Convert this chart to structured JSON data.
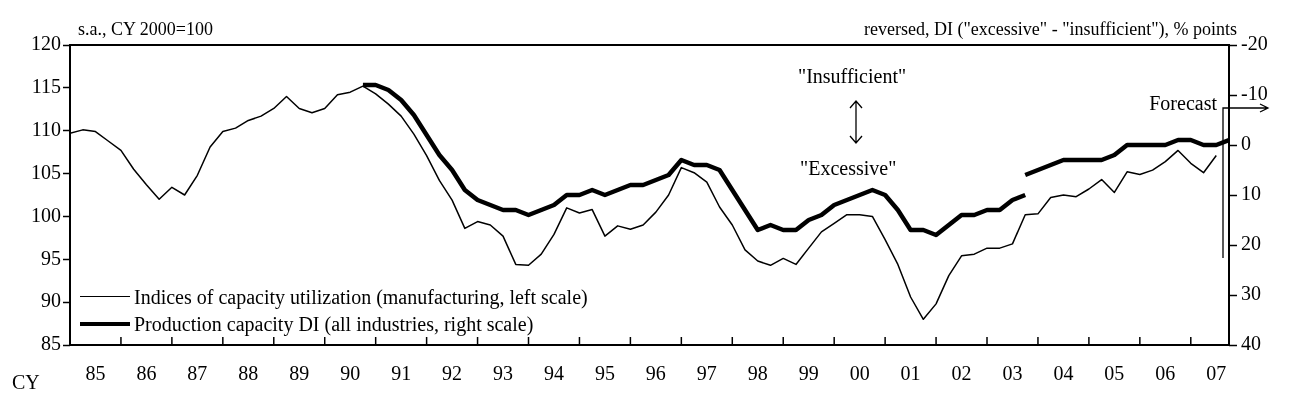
{
  "chart_data": {
    "type": "line",
    "ylabel": "s.a., CY 2000=100",
    "y2label": "reversed, DI (\"excessive\" - \"insufficient\"), % points",
    "xlabel": "CY",
    "annotations": [
      "\"Insufficient\"",
      "\"Excessive\"",
      "Forecast"
    ],
    "legend": "bottom left",
    "xlim": [
      "1985-01",
      "2007-10"
    ],
    "xticks": [
      {
        "value": "1985-01",
        "label": null
      },
      {
        "value": "1985-07",
        "label": "85"
      },
      {
        "value": "1986-01",
        "label": null
      },
      {
        "value": "1986-07",
        "label": "86"
      },
      {
        "value": "1987-01",
        "label": null
      },
      {
        "value": "1987-07",
        "label": "87"
      },
      {
        "value": "1988-01",
        "label": null
      },
      {
        "value": "1988-07",
        "label": "88"
      },
      {
        "value": "1989-01",
        "label": null
      },
      {
        "value": "1989-07",
        "label": "89"
      },
      {
        "value": "1990-01",
        "label": null
      },
      {
        "value": "1990-07",
        "label": "90"
      },
      {
        "value": "1991-01",
        "label": null
      },
      {
        "value": "1991-07",
        "label": "91"
      },
      {
        "value": "1992-01",
        "label": null
      },
      {
        "value": "1992-07",
        "label": "92"
      },
      {
        "value": "1993-01",
        "label": null
      },
      {
        "value": "1993-07",
        "label": "93"
      },
      {
        "value": "1994-01",
        "label": null
      },
      {
        "value": "1994-07",
        "label": "94"
      },
      {
        "value": "1995-01",
        "label": null
      },
      {
        "value": "1995-07",
        "label": "95"
      },
      {
        "value": "1996-01",
        "label": null
      },
      {
        "value": "1996-07",
        "label": "96"
      },
      {
        "value": "1997-01",
        "label": null
      },
      {
        "value": "1997-07",
        "label": "97"
      },
      {
        "value": "1998-01",
        "label": null
      },
      {
        "value": "1998-07",
        "label": "98"
      },
      {
        "value": "1999-01",
        "label": null
      },
      {
        "value": "1999-07",
        "label": "99"
      },
      {
        "value": "2000-01",
        "label": null
      },
      {
        "value": "2000-07",
        "label": "00"
      },
      {
        "value": "2001-01",
        "label": null
      },
      {
        "value": "2001-07",
        "label": "01"
      },
      {
        "value": "2002-01",
        "label": null
      },
      {
        "value": "2002-07",
        "label": "02"
      },
      {
        "value": "2003-01",
        "label": null
      },
      {
        "value": "2003-07",
        "label": "03"
      },
      {
        "value": "2004-01",
        "label": null
      },
      {
        "value": "2004-07",
        "label": "04"
      },
      {
        "value": "2005-01",
        "label": null
      },
      {
        "value": "2005-07",
        "label": "05"
      },
      {
        "value": "2006-01",
        "label": null
      },
      {
        "value": "2006-07",
        "label": "06"
      },
      {
        "value": "2007-01",
        "label": null
      },
      {
        "value": "2007-07",
        "label": "07"
      }
    ],
    "ylim": [
      85,
      120
    ],
    "yticks": [
      85,
      90,
      95,
      100,
      105,
      110,
      115,
      120
    ],
    "y2lim": [
      40,
      -20
    ],
    "y2ticks": [
      40,
      30,
      20,
      10,
      0,
      -10,
      -20
    ],
    "series": [
      {
        "name": "Indices of capacity utilization (manufacturing, left scale)",
        "color": "#000000",
        "x": [
          "1985-01",
          "1985-04",
          "1985-07",
          "1985-10",
          "1986-01",
          "1986-04",
          "1986-07",
          "1986-10",
          "1987-01",
          "1987-04",
          "1987-07",
          "1987-10",
          "1988-01",
          "1988-04",
          "1988-07",
          "1988-10",
          "1989-01",
          "1989-04",
          "1989-07",
          "1989-10",
          "1990-01",
          "1990-04",
          "1990-07",
          "1990-10",
          "1991-01",
          "1991-04",
          "1991-07",
          "1991-10",
          "1992-01",
          "1992-04",
          "1992-07",
          "1992-10",
          "1993-01",
          "1993-04",
          "1993-07",
          "1993-10",
          "1994-01",
          "1994-04",
          "1994-07",
          "1994-10",
          "1995-01",
          "1995-04",
          "1995-07",
          "1995-10",
          "1996-01",
          "1996-04",
          "1996-07",
          "1996-10",
          "1997-01",
          "1997-04",
          "1997-07",
          "1997-10",
          "1998-01",
          "1998-04",
          "1998-07",
          "1998-10",
          "1999-01",
          "1999-04",
          "1999-07",
          "1999-10",
          "2000-01",
          "2000-04",
          "2000-07",
          "2000-10",
          "2001-01",
          "2001-04",
          "2001-07",
          "2001-10",
          "2002-01",
          "2002-04",
          "2002-07",
          "2002-10",
          "2003-01",
          "2003-04",
          "2003-07",
          "2003-10",
          "2004-01",
          "2004-04",
          "2004-07",
          "2004-10",
          "2005-01",
          "2005-04",
          "2005-07",
          "2005-10",
          "2006-01",
          "2006-04",
          "2006-07",
          "2006-10",
          "2007-01",
          "2007-04",
          "2007-07"
        ],
        "values": [
          109.7,
          110.1,
          109.9,
          108.8,
          107.7,
          105.5,
          103.7,
          102.0,
          103.4,
          102.5,
          104.8,
          108.1,
          109.9,
          110.3,
          111.2,
          111.7,
          112.6,
          114.0,
          112.6,
          112.1,
          112.6,
          114.2,
          114.5,
          115.2,
          114.3,
          113.1,
          111.7,
          109.6,
          107.1,
          104.2,
          101.9,
          98.6,
          99.4,
          99.0,
          97.7,
          94.4,
          94.3,
          95.6,
          97.9,
          101.0,
          100.4,
          100.8,
          97.7,
          98.9,
          98.5,
          99.0,
          100.5,
          102.5,
          105.7,
          105.1,
          104.0,
          101.1,
          99.0,
          96.1,
          94.8,
          94.3,
          95.1,
          94.4,
          96.3,
          98.2,
          99.2,
          100.2,
          100.2,
          100.0,
          97.3,
          94.4,
          90.6,
          88.0,
          89.8,
          93.1,
          95.4,
          95.6,
          96.3,
          96.3,
          96.8,
          100.2,
          100.3,
          102.2,
          102.5,
          102.3,
          103.2,
          104.3,
          102.8,
          105.2,
          104.9,
          105.4,
          106.4,
          107.7,
          106.2,
          105.1,
          107.1
        ]
      },
      {
        "name": "Production capacity DI (all industries, right scale)",
        "color": "#000000",
        "axis": "y2",
        "x": [
          "1990-10",
          "1991-01",
          "1991-04",
          "1991-07",
          "1991-10",
          "1992-01",
          "1992-04",
          "1992-07",
          "1992-10",
          "1993-01",
          "1993-04",
          "1993-07",
          "1993-10",
          "1994-01",
          "1994-04",
          "1994-07",
          "1994-10",
          "1995-01",
          "1995-04",
          "1995-07",
          "1995-10",
          "1996-01",
          "1996-04",
          "1996-07",
          "1996-10",
          "1997-01",
          "1997-04",
          "1997-07",
          "1997-10",
          "1998-01",
          "1998-04",
          "1998-07",
          "1998-10",
          "1999-01",
          "1999-04",
          "1999-07",
          "1999-10",
          "2000-01",
          "2000-04",
          "2000-07",
          "2000-10",
          "2001-01",
          "2001-04",
          "2001-07",
          "2001-10",
          "2002-01",
          "2002-04",
          "2002-07",
          "2002-10",
          "2003-01",
          "2003-04",
          "2003-07",
          "2003-10"
        ],
        "values": [
          -12,
          -12,
          -11,
          -9,
          -6,
          -2,
          2,
          5,
          9,
          11,
          12,
          13,
          13,
          14,
          13,
          12,
          10,
          10,
          9,
          10,
          9,
          8,
          8,
          7,
          6,
          3,
          4,
          4,
          5,
          9,
          13,
          17,
          16,
          17,
          17,
          15,
          14,
          12,
          11,
          10,
          9,
          10,
          13,
          17,
          17,
          18,
          16,
          14,
          14,
          13,
          13,
          11,
          10
        ]
      },
      {
        "color": "#000000",
        "axis": "y2",
        "x": [
          "2003-10",
          "2004-01",
          "2004-04",
          "2004-07",
          "2004-10",
          "2005-01",
          "2005-04",
          "2005-07",
          "2005-10",
          "2006-01",
          "2006-04",
          "2006-07",
          "2006-10",
          "2007-01",
          "2007-04",
          "2007-07",
          "2007-10"
        ],
        "values": [
          6,
          5,
          4,
          3,
          3,
          3,
          3,
          2,
          0,
          0,
          0,
          0,
          -1,
          -1,
          0,
          0,
          -1
        ]
      }
    ]
  }
}
